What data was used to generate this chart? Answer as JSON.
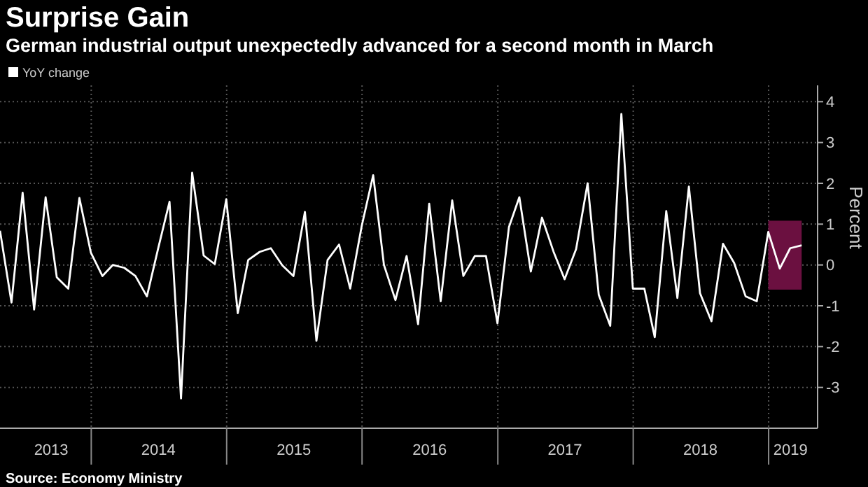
{
  "chart_data": {
    "type": "line",
    "title": "Surprise Gain",
    "subtitle": "German industrial output unexpectedly advanced for a second month in March",
    "ylabel": "Percent",
    "annotations": [
      "Source: Economy Ministry"
    ],
    "x": [
      "2013-04-30",
      "2013-05-31",
      "2013-06-30",
      "2013-07-31",
      "2013-08-31",
      "2013-09-30",
      "2013-10-31",
      "2013-11-30",
      "2013-12-31",
      "2014-01-31",
      "2014-02-28",
      "2014-03-31",
      "2014-04-30",
      "2014-05-31",
      "2014-06-30",
      "2014-07-31",
      "2014-08-31",
      "2014-09-30",
      "2014-10-31",
      "2014-11-30",
      "2014-12-31",
      "2015-01-31",
      "2015-02-28",
      "2015-03-31",
      "2015-04-30",
      "2015-05-31",
      "2015-06-30",
      "2015-07-31",
      "2015-08-31",
      "2015-09-30",
      "2015-10-31",
      "2015-11-30",
      "2015-12-31",
      "2016-01-31",
      "2016-02-29",
      "2016-03-31",
      "2016-04-30",
      "2016-05-31",
      "2016-06-30",
      "2016-07-31",
      "2016-08-31",
      "2016-09-30",
      "2016-10-31",
      "2016-11-30",
      "2016-12-31",
      "2017-01-31",
      "2017-02-28",
      "2017-03-31",
      "2017-04-30",
      "2017-05-31",
      "2017-06-30",
      "2017-07-31",
      "2017-08-31",
      "2017-09-30",
      "2017-10-31",
      "2017-11-30",
      "2017-12-31",
      "2018-01-31",
      "2018-02-28",
      "2018-03-31",
      "2018-04-30",
      "2018-05-31",
      "2018-06-30",
      "2018-07-31",
      "2018-08-31",
      "2018-09-30",
      "2018-10-31",
      "2018-11-30",
      "2018-12-31",
      "2019-01-31",
      "2019-02-28",
      "2019-03-31"
    ],
    "series": [
      {
        "name": "YoY change",
        "color": "#ffffff",
        "values": [
          0.84,
          -0.92,
          1.77,
          -1.09,
          1.66,
          -0.3,
          -0.58,
          1.64,
          0.3,
          -0.27,
          0.0,
          -0.07,
          -0.27,
          -0.77,
          0.39,
          1.55,
          -3.27,
          2.26,
          0.23,
          0.02,
          1.61,
          -1.18,
          0.12,
          0.32,
          0.41,
          -0.01,
          -0.27,
          1.3,
          -1.86,
          0.12,
          0.5,
          -0.58,
          0.95,
          2.2,
          0.0,
          -0.86,
          0.22,
          -1.45,
          1.5,
          -0.89,
          1.58,
          -0.27,
          0.22,
          0.22,
          -1.43,
          0.93,
          1.66,
          -0.16,
          1.16,
          0.33,
          -0.35,
          0.39,
          2.0,
          -0.73,
          -1.49,
          3.7,
          -0.58,
          -0.58,
          -1.77,
          1.32,
          -0.81,
          1.92,
          -0.69,
          -1.38,
          0.52,
          0.05,
          -0.77,
          -0.89,
          0.81,
          -0.09,
          0.41,
          0.48
        ]
      }
    ],
    "xlim": [
      "2013-04-30",
      "2019-05-13"
    ],
    "xticks": [
      {
        "value": "2013-09-15",
        "label": "2013"
      },
      {
        "value": "2014-01-01",
        "label": null
      },
      {
        "value": "2014-07-01",
        "label": "2014"
      },
      {
        "value": "2015-01-01",
        "label": null
      },
      {
        "value": "2015-07-01",
        "label": "2015"
      },
      {
        "value": "2016-01-01",
        "label": null
      },
      {
        "value": "2016-07-01",
        "label": "2016"
      },
      {
        "value": "2017-01-01",
        "label": null
      },
      {
        "value": "2017-07-01",
        "label": "2017"
      },
      {
        "value": "2018-01-01",
        "label": null
      },
      {
        "value": "2018-07-01",
        "label": "2018"
      },
      {
        "value": "2019-01-01",
        "label": null
      },
      {
        "value": "2019-03-01",
        "label": "2019"
      }
    ],
    "ylim": [
      -4,
      4.4
    ],
    "yticks": [
      -3,
      -2,
      -1,
      0,
      1,
      2,
      3,
      4
    ],
    "bands": [
      {
        "axis": "x",
        "from": "2018-12-31",
        "to": "2019-03-31",
        "color": "#6b1040"
      }
    ],
    "grid": true,
    "legend": "top left",
    "marker": "none",
    "line_style": "solid"
  }
}
